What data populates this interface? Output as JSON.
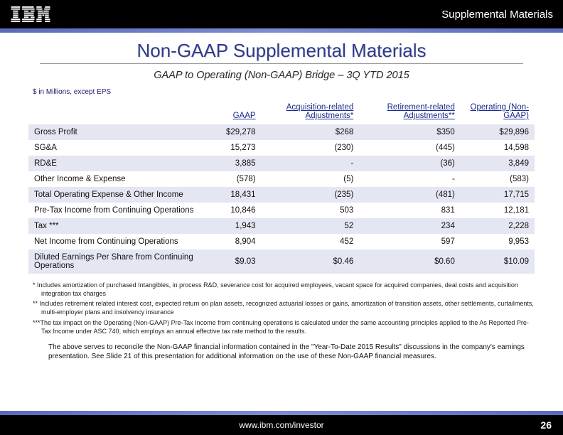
{
  "header": {
    "section_label": "Supplemental Materials",
    "logo_alt": "IBM"
  },
  "page": {
    "title": "Non-GAAP Supplemental Materials",
    "subtitle": "GAAP to Operating (Non-GAAP) Bridge – 3Q YTD 2015",
    "units_note": "$ in Millions, except EPS"
  },
  "table": {
    "columns": [
      "",
      "GAAP",
      "Acquisition-related Adjustments*",
      "Retirement-related Adjustments**",
      "Operating (Non-GAAP)"
    ],
    "rows": [
      {
        "label": "Gross Profit",
        "cells": [
          "$29,278",
          "$268",
          "$350",
          "$29,896"
        ],
        "band": true
      },
      {
        "label": "SG&A",
        "cells": [
          "15,273",
          "(230)",
          "(445)",
          "14,598"
        ],
        "band": false
      },
      {
        "label": "RD&E",
        "cells": [
          "3,885",
          "-",
          "(36)",
          "3,849"
        ],
        "band": true
      },
      {
        "label": "Other Income & Expense",
        "cells": [
          "(578)",
          "(5)",
          "-",
          "(583)"
        ],
        "band": false
      },
      {
        "label": "Total Operating Expense & Other Income",
        "cells": [
          "18,431",
          "(235)",
          "(481)",
          "17,715"
        ],
        "band": true
      },
      {
        "label": "Pre-Tax Income from Continuing Operations",
        "cells": [
          "10,846",
          "503",
          "831",
          "12,181"
        ],
        "band": false
      },
      {
        "label": "Tax ***",
        "cells": [
          "1,943",
          "52",
          "234",
          "2,228"
        ],
        "band": true
      },
      {
        "label": "Net Income from Continuing Operations",
        "cells": [
          "8,904",
          "452",
          "597",
          "9,953"
        ],
        "band": false
      },
      {
        "label": "Diluted Earnings Per Share from Continuing Operations",
        "cells": [
          "$9.03",
          "$0.46",
          "$0.60",
          "$10.09"
        ],
        "band": true
      }
    ],
    "band_color": "#e4e6f2",
    "header_color": "#1a2a8c"
  },
  "footnotes": [
    "*  Includes amortization of purchased Intangibles, in process R&D, severance cost for acquired employees, vacant space for acquired companies, deal costs and acquisition integration tax charges",
    "** Includes retirement related interest cost, expected return on plan assets, recognized actuarial losses or gains, amortization of transition assets, other settlements, curtailments, multi-employer plans and insolvency insurance",
    "***The tax impact on the Operating (Non-GAAP) Pre-Tax Income from continuing operations is calculated under the same accounting principles applied to the As Reported Pre-Tax Income under ASC 740, which employs an annual effective tax rate method to the results."
  ],
  "summary": "The above serves to reconcile the Non-GAAP financial information contained in the \"Year-To-Date 2015 Results\" discussions in the company's earnings presentation. See Slide 21 of this presentation for additional information on the use of these Non-GAAP financial measures.",
  "footer": {
    "url": "www.ibm.com/investor",
    "page_number": "26"
  }
}
